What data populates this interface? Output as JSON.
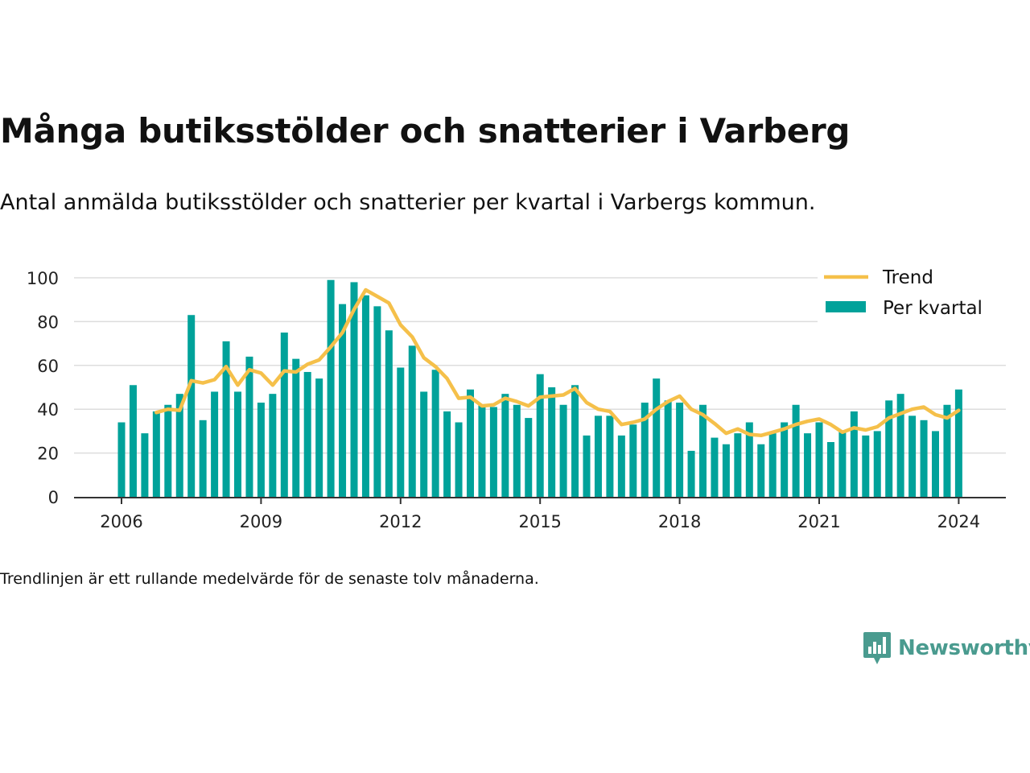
{
  "title": "Många butiksstölder och snatterier i Varberg",
  "subtitle": "Antal anmälda butiksstölder och snatterier per kvartal i Varbergs kommun.",
  "footnote": "Trendlinjen är ett rullande medelvärde för de senaste tolv månaderna.",
  "brand": {
    "name": "Newsworthy",
    "icon": "newsworthy-logo-icon",
    "color": "#4a9b8f"
  },
  "colors": {
    "bars": "#00a29a",
    "trend": "#f5c04a",
    "axis": "#333333",
    "grid": "#dddddd"
  },
  "chart_data": {
    "type": "bar",
    "title": "Många butiksstölder och snatterier i Varberg",
    "subtitle": "Antal anmälda butiksstölder och snatterier per kvartal i Varbergs kommun.",
    "xlabel": "",
    "ylabel": "",
    "ylim": [
      0,
      100
    ],
    "yticks": [
      0,
      20,
      40,
      60,
      80,
      100
    ],
    "xticks": [
      "2006",
      "2009",
      "2012",
      "2015",
      "2018",
      "2021",
      "2024"
    ],
    "grid": true,
    "legend": {
      "placement": "top-right",
      "entries": [
        "Trend",
        "Per kvartal"
      ]
    },
    "x_start": "2006 Q1",
    "series": [
      {
        "name": "Per kvartal",
        "type": "bar",
        "values": [
          34,
          51,
          29,
          39,
          42,
          47,
          83,
          35,
          48,
          71,
          48,
          64,
          43,
          47,
          75,
          63,
          57,
          54,
          99,
          88,
          98,
          92,
          87,
          76,
          59,
          69,
          48,
          58,
          39,
          34,
          49,
          42,
          41,
          47,
          42,
          36,
          56,
          50,
          42,
          51,
          28,
          37,
          37,
          28,
          33,
          43,
          54,
          44,
          43,
          21,
          42,
          27,
          24,
          29,
          34,
          24,
          29,
          34,
          42,
          29,
          34,
          25,
          30,
          39,
          28,
          30,
          44,
          47,
          37,
          35,
          30,
          42,
          49
        ]
      },
      {
        "name": "Trend",
        "type": "line",
        "values": [
          null,
          null,
          null,
          38.5,
          40,
          39.5,
          53,
          52,
          53.5,
          59.5,
          51,
          58,
          56.5,
          51,
          57.5,
          57,
          60.5,
          62.5,
          68.5,
          75,
          85.5,
          94.5,
          91.5,
          88.5,
          78.5,
          73,
          63.5,
          59.5,
          54,
          45,
          45.5,
          41.5,
          42,
          45,
          43.5,
          41.5,
          45.5,
          46,
          46.5,
          49.5,
          43,
          40,
          39,
          33,
          34,
          35.5,
          40,
          43.5,
          46,
          40,
          37.5,
          33.5,
          29,
          31,
          28.5,
          28,
          29.5,
          31,
          33,
          34.5,
          35.5,
          33,
          29.5,
          31.5,
          30.5,
          32,
          36,
          38,
          40,
          41,
          37.5,
          36,
          39.5
        ]
      }
    ]
  }
}
